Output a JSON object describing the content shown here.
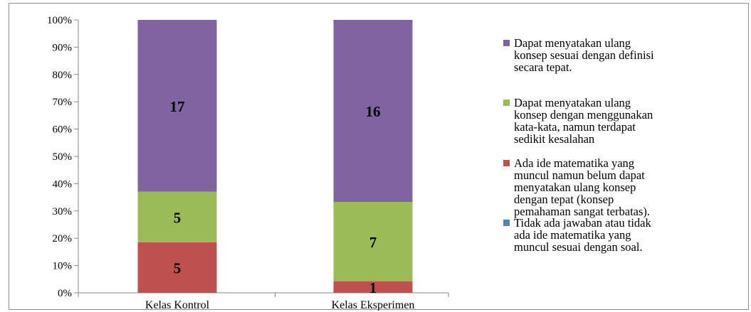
{
  "chart_data": {
    "type": "bar",
    "stacked": true,
    "normalized_percent": true,
    "categories": [
      "Kelas Kontrol",
      "Kelas Eksperimen"
    ],
    "y_ticks": [
      "0%",
      "10%",
      "20%",
      "30%",
      "40%",
      "50%",
      "60%",
      "70%",
      "80%",
      "90%",
      "100%"
    ],
    "ylim": [
      0,
      100
    ],
    "grid": false,
    "legend_position": "right",
    "series": [
      {
        "name": "Tidak ada jawaban atau tidak ada ide matematika yang muncul sesuai dengan soal.",
        "legend_lines": [
          "Tidak ada jawaban atau tidak",
          "ada ide matematika yang",
          "muncul sesuai dengan soal."
        ],
        "color": "#4f81bd",
        "values": [
          0,
          0
        ]
      },
      {
        "name": "Ada ide matematika yang muncul namun belum dapat menyatakan ulang konsep dengan tepat (konsep pemahaman sangat terbatas).",
        "legend_lines": [
          "Ada ide matematika yang",
          "muncul namun belum dapat",
          "menyatakan ulang konsep",
          "dengan tepat (konsep",
          "pemahaman sangat terbatas)."
        ],
        "color": "#c0504d",
        "values": [
          5,
          1
        ]
      },
      {
        "name": "Dapat menyatakan ulang konsep dengan menggunakan kata-kata, namun terdapat sedikit kesalahan",
        "legend_lines": [
          "Dapat menyatakan ulang",
          "konsep dengan menggunakan",
          "kata-kata, namun terdapat",
          "sedikit kesalahan"
        ],
        "color": "#9bbb59",
        "values": [
          5,
          7
        ]
      },
      {
        "name": "Dapat menyatakan ulang konsep sesuai dengan definisi secara  tepat.",
        "legend_lines": [
          "Dapat menyatakan ulang",
          "konsep sesuai dengan definisi",
          "secara  tepat."
        ],
        "color": "#8064a2",
        "values": [
          17,
          16
        ]
      }
    ],
    "legend_order": [
      3,
      2,
      1,
      0
    ]
  }
}
